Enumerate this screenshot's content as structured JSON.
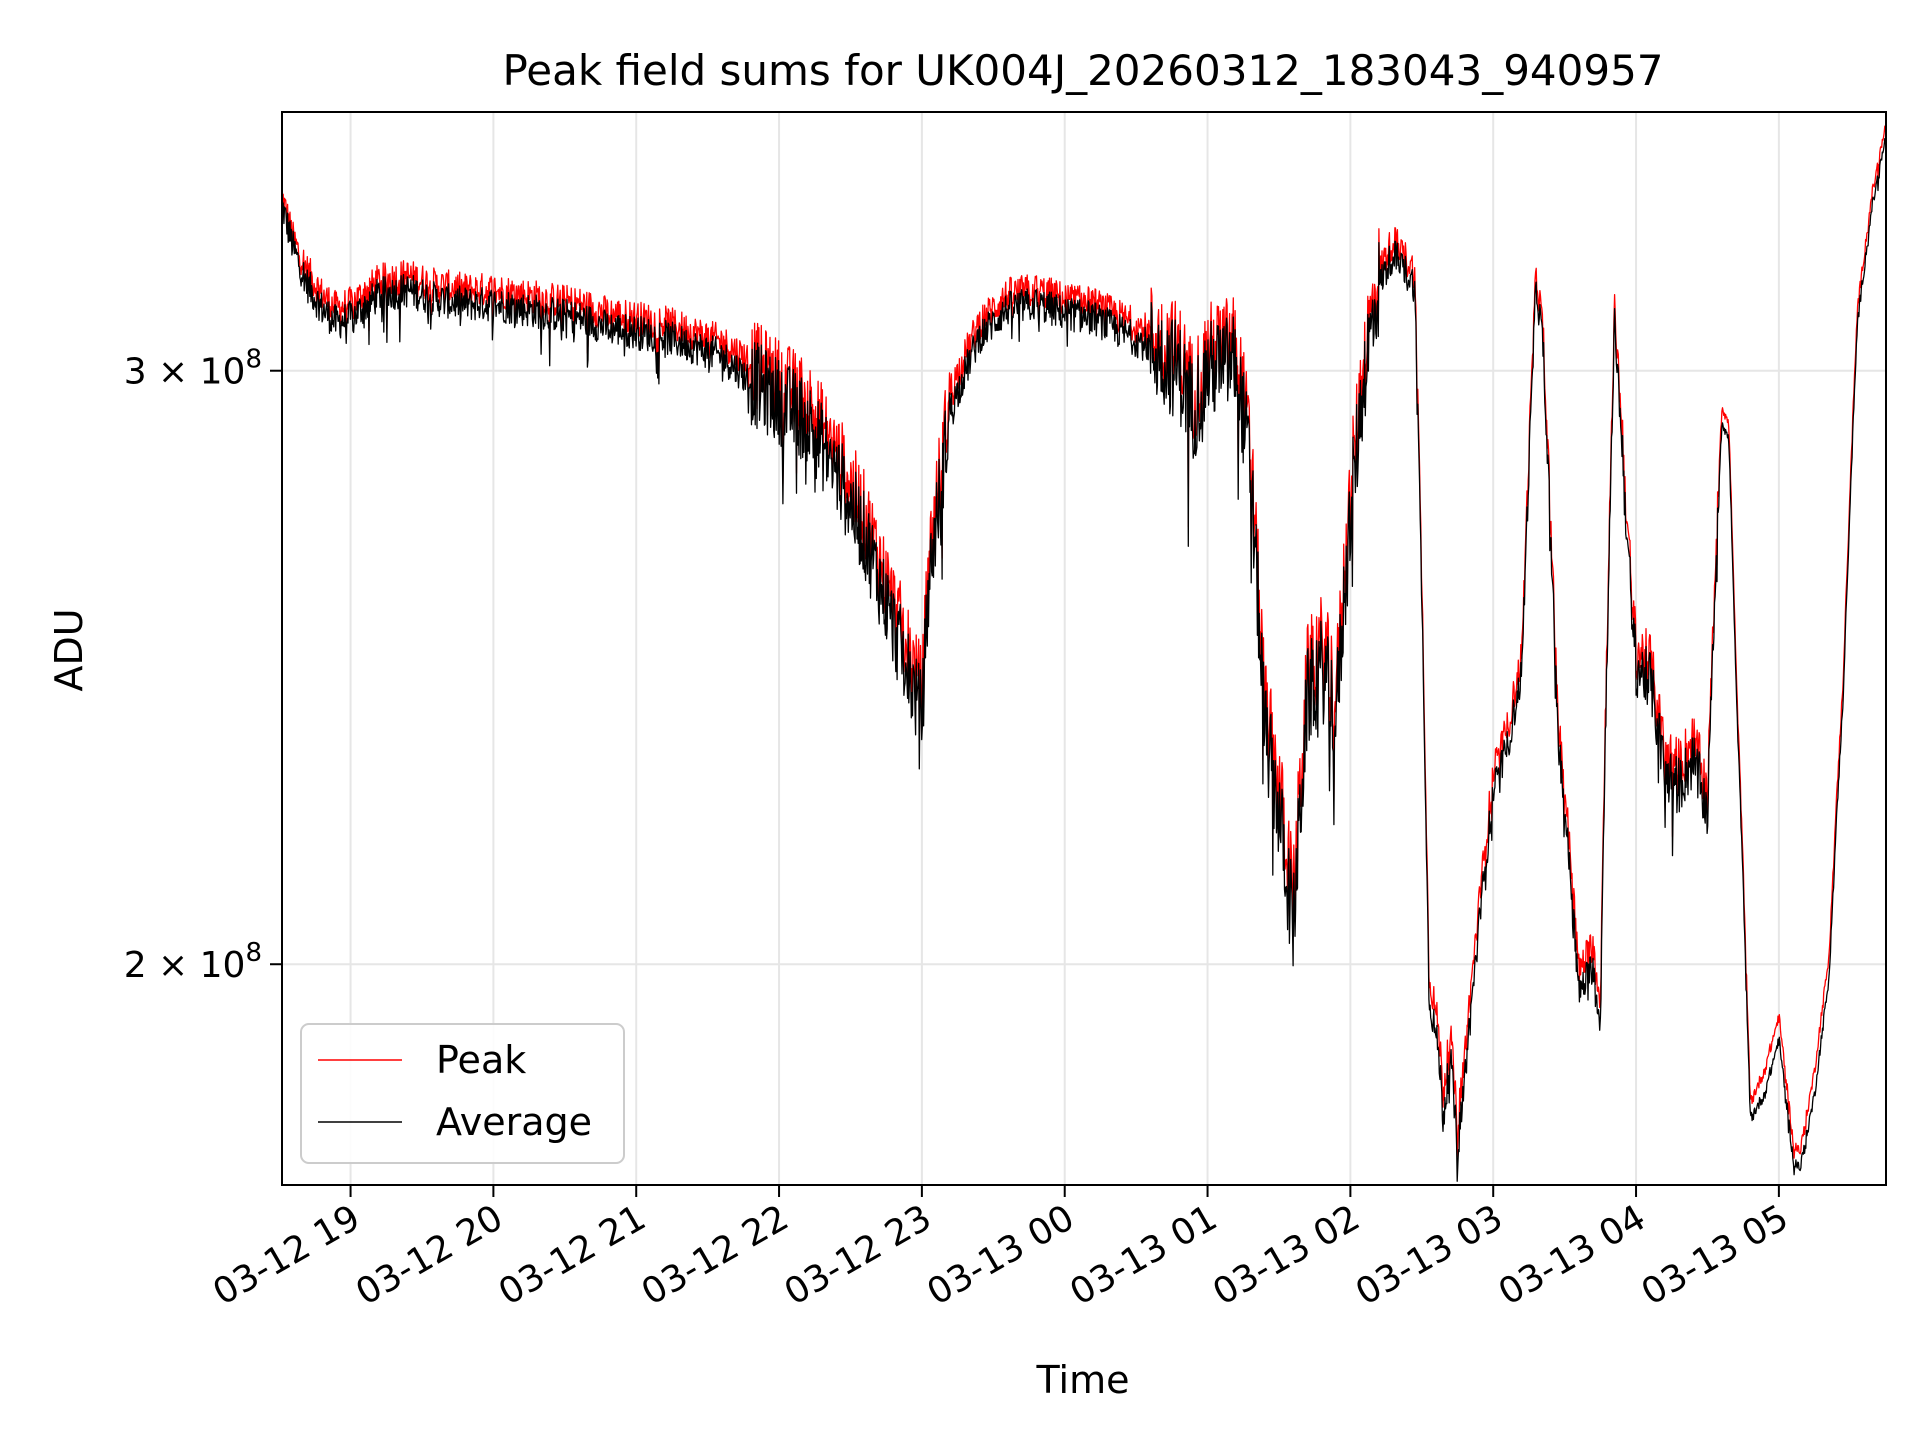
{
  "chart_data": {
    "type": "line",
    "title": "Peak field sums for UK004J_20260312_183043_940957",
    "xlabel": "Time",
    "ylabel": "ADU",
    "yscale": "log",
    "ylim": [
      172000000,
      358000000
    ],
    "x_start_hours": -0.48,
    "x_end_hours": 10.75,
    "grid": true,
    "legend_position": "lower-left",
    "x_ticks": [
      {
        "hours": 0,
        "label": "03-12 19"
      },
      {
        "hours": 1,
        "label": "03-12 20"
      },
      {
        "hours": 2,
        "label": "03-12 21"
      },
      {
        "hours": 3,
        "label": "03-12 22"
      },
      {
        "hours": 4,
        "label": "03-12 23"
      },
      {
        "hours": 5,
        "label": "03-13 00"
      },
      {
        "hours": 6,
        "label": "03-13 01"
      },
      {
        "hours": 7,
        "label": "03-13 02"
      },
      {
        "hours": 8,
        "label": "03-13 03"
      },
      {
        "hours": 9,
        "label": "03-13 04"
      },
      {
        "hours": 10,
        "label": "03-13 05"
      }
    ],
    "y_ticks": [
      {
        "value": 300000000,
        "base": "3 × 10",
        "exp": "8"
      },
      {
        "value": 200000000,
        "base": "2 × 10",
        "exp": "8"
      }
    ],
    "series": [
      {
        "name": "Peak",
        "color": "#ff0000"
      },
      {
        "name": "Average",
        "color": "#000000"
      }
    ],
    "x_hours": [
      -0.48,
      -0.4,
      -0.3,
      -0.2,
      -0.1,
      0,
      0.2,
      0.4,
      0.6,
      0.8,
      1,
      1.2,
      1.4,
      1.6,
      1.8,
      2,
      2.2,
      2.4,
      2.6,
      2.8,
      3,
      3.2,
      3.4,
      3.6,
      3.8,
      4,
      4.05,
      4.2,
      4.4,
      4.6,
      4.8,
      5,
      5.2,
      5.4,
      5.6,
      5.8,
      5.9,
      6,
      6.2,
      6.3,
      6.4,
      6.5,
      6.6,
      6.7,
      6.8,
      6.9,
      7,
      7.1,
      7.2,
      7.3,
      7.45,
      7.55,
      7.62,
      7.65,
      7.7,
      7.75,
      7.8,
      7.9,
      8,
      8.1,
      8.2,
      8.3,
      8.35,
      8.45,
      8.55,
      8.6,
      8.7,
      8.75,
      8.85,
      8.95,
      9,
      9.1,
      9.2,
      9.3,
      9.4,
      9.5,
      9.6,
      9.65,
      9.7,
      9.8,
      9.9,
      10,
      10.1,
      10.15,
      10.25,
      10.35,
      10.45,
      10.55,
      10.65,
      10.75
    ],
    "average_values": [
      336000000,
      326000000,
      318000000,
      313000000,
      310000000,
      311000000,
      316000000,
      317000000,
      315000000,
      314000000,
      314000000,
      313000000,
      312000000,
      311000000,
      309000000,
      308000000,
      307000000,
      305000000,
      303000000,
      298000000,
      294000000,
      290000000,
      280000000,
      268000000,
      252000000,
      237000000,
      260000000,
      292000000,
      307000000,
      313000000,
      314000000,
      312000000,
      311000000,
      308000000,
      305000000,
      300000000,
      292000000,
      300000000,
      302000000,
      280000000,
      235000000,
      222000000,
      205000000,
      240000000,
      245000000,
      237000000,
      272000000,
      300000000,
      318000000,
      325000000,
      318000000,
      196000000,
      188000000,
      180000000,
      188000000,
      176000000,
      185000000,
      205000000,
      225000000,
      232000000,
      244000000,
      318000000,
      305000000,
      235000000,
      210000000,
      196000000,
      200000000,
      192000000,
      310000000,
      262000000,
      245000000,
      243000000,
      228000000,
      226000000,
      230000000,
      222000000,
      290000000,
      286000000,
      242000000,
      180000000,
      183000000,
      190000000,
      175000000,
      174000000,
      183000000,
      198000000,
      240000000,
      310000000,
      335000000,
      352000000
    ],
    "peak_values": [
      338000000,
      328000000,
      321000000,
      316000000,
      313000000,
      314000000,
      319000000,
      320000000,
      318000000,
      317000000,
      317000000,
      316000000,
      315000000,
      314000000,
      312000000,
      311000000,
      310000000,
      308000000,
      306000000,
      302000000,
      298000000,
      294000000,
      284000000,
      272000000,
      256000000,
      241000000,
      264000000,
      296000000,
      310000000,
      316000000,
      317000000,
      315000000,
      314000000,
      311000000,
      308000000,
      304000000,
      296000000,
      304000000,
      306000000,
      284000000,
      239000000,
      226000000,
      209000000,
      244000000,
      249000000,
      241000000,
      276000000,
      304000000,
      321000000,
      328000000,
      321000000,
      199000000,
      191000000,
      183000000,
      191000000,
      179000000,
      188000000,
      208000000,
      228000000,
      235000000,
      247000000,
      321000000,
      308000000,
      238000000,
      213000000,
      199000000,
      203000000,
      195000000,
      313000000,
      265000000,
      248000000,
      246000000,
      231000000,
      229000000,
      233000000,
      225000000,
      293000000,
      289000000,
      245000000,
      182000000,
      186000000,
      193000000,
      177000000,
      176000000,
      186000000,
      201000000,
      243000000,
      313000000,
      338000000,
      355000000
    ]
  }
}
